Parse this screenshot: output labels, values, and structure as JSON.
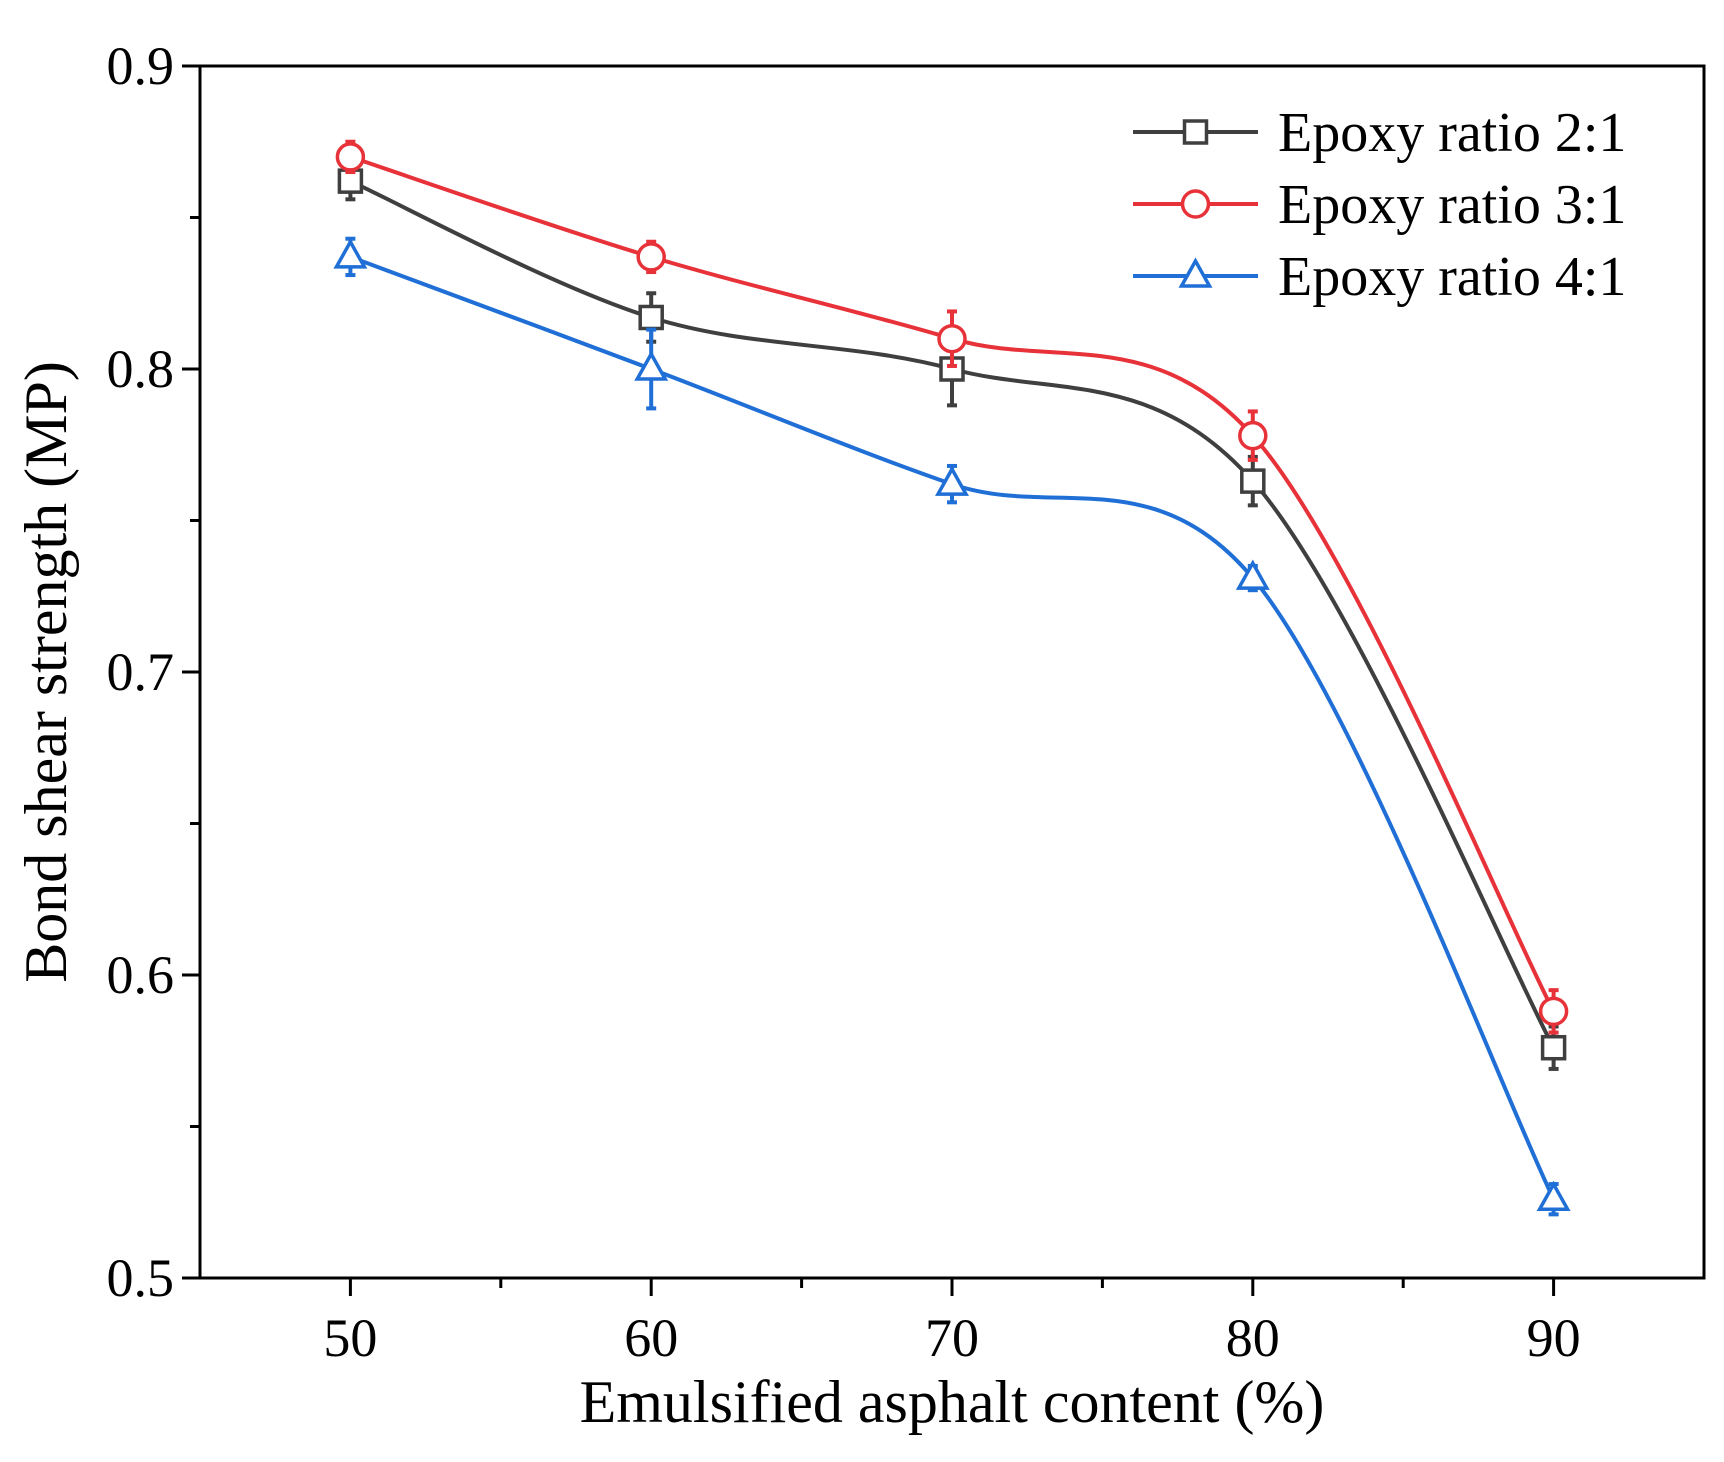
{
  "chart_data": {
    "type": "line",
    "title": "",
    "xlabel": "Emulsified asphalt content (%)",
    "ylabel": "Bond shear strength (MP)",
    "x": [
      50,
      60,
      70,
      80,
      90
    ],
    "x_tick_labels": [
      "50",
      "60",
      "70",
      "80",
      "90"
    ],
    "y_tick_labels": [
      "0.5",
      "0.6",
      "0.7",
      "0.8",
      "0.9"
    ],
    "xlim": [
      45,
      95
    ],
    "ylim": [
      0.5,
      0.9
    ],
    "x_major_ticks": [
      50,
      60,
      70,
      80,
      90
    ],
    "x_minor_ticks": [
      55,
      65,
      75,
      85
    ],
    "y_major_ticks": [
      0.5,
      0.6,
      0.7,
      0.8,
      0.9
    ],
    "y_minor_ticks": [
      0.55,
      0.65,
      0.75,
      0.85
    ],
    "grid": false,
    "legend_position": "top-right",
    "series": [
      {
        "name": "Epoxy ratio 2:1",
        "marker": "square",
        "color": "#3f3f3f",
        "values": [
          0.862,
          0.817,
          0.8,
          0.763,
          0.576
        ],
        "errors": [
          0.006,
          0.008,
          0.012,
          0.008,
          0.007
        ]
      },
      {
        "name": "Epoxy ratio 3:1",
        "marker": "circle",
        "color": "#e8323a",
        "values": [
          0.87,
          0.837,
          0.81,
          0.778,
          0.588
        ],
        "errors": [
          0.005,
          0.005,
          0.009,
          0.008,
          0.007
        ]
      },
      {
        "name": "Epoxy ratio 4:1",
        "marker": "triangle",
        "color": "#1f6fd6",
        "values": [
          0.837,
          0.8,
          0.762,
          0.731,
          0.526
        ],
        "errors": [
          0.006,
          0.013,
          0.006,
          0.004,
          0.005
        ]
      }
    ]
  }
}
